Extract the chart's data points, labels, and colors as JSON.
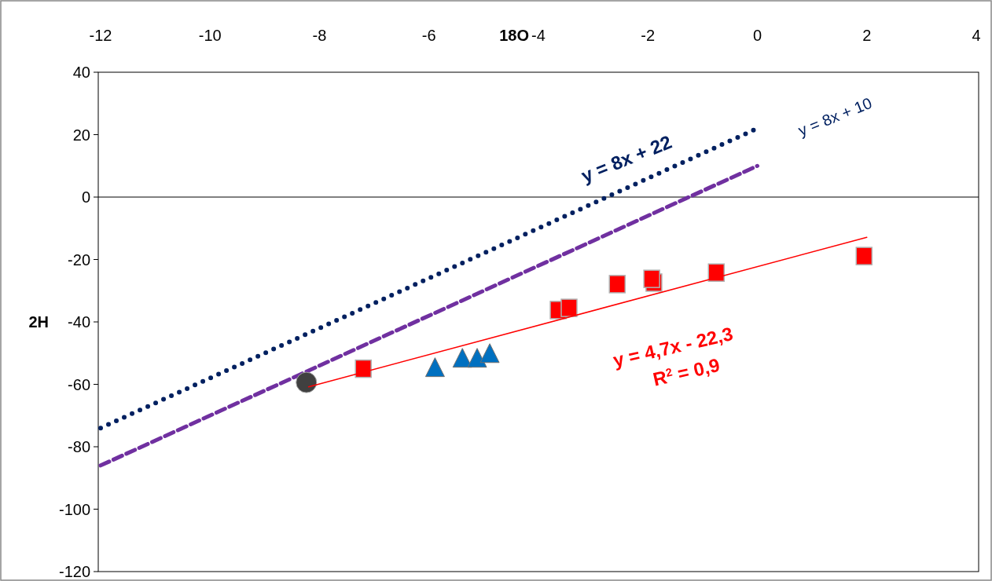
{
  "chart_data": {
    "type": "scatter",
    "xlabel": "18O",
    "ylabel": "2H",
    "xlim": [
      -12,
      4
    ],
    "ylim": [
      -120,
      40
    ],
    "xticks": [
      -12,
      -10,
      -8,
      -6,
      -4,
      -2,
      0,
      2,
      4
    ],
    "yticks": [
      40,
      20,
      0,
      -20,
      -40,
      -60,
      -80,
      -100,
      -120
    ],
    "grid": false,
    "ref_lines": [
      {
        "axis": "y",
        "value": 0,
        "color": "#000000"
      }
    ],
    "series": [
      {
        "type": "line",
        "color": "#002060",
        "line_style": "dotted",
        "marker": "none",
        "x": [
          -12,
          0
        ],
        "values": [
          -74,
          22
        ]
      },
      {
        "type": "line",
        "color": "#7030a0",
        "line_style": "dashed",
        "marker": "none",
        "x": [
          -12,
          0
        ],
        "values": [
          -86,
          10
        ]
      },
      {
        "type": "scatter",
        "color": "#404040",
        "marker": "circle",
        "x": [
          -8.24
        ],
        "values": [
          -59.4
        ]
      },
      {
        "type": "scatter",
        "color": "#0070c0",
        "marker": "triangle",
        "x": [
          -5.89,
          -5.39,
          -5.12,
          -4.89
        ],
        "values": [
          -55,
          -52,
          -52,
          -50.5
        ]
      },
      {
        "type": "scatter",
        "color": "#ff0000",
        "marker": "square",
        "x": [
          -7.2,
          -3.64,
          -3.44,
          -2.56,
          -1.89,
          -1.93,
          -0.75,
          1.95
        ],
        "values": [
          -55,
          -36.2,
          -35.5,
          -27.9,
          -27.4,
          -26.2,
          -24.2,
          -18.9
        ]
      },
      {
        "type": "line",
        "color": "#ff0000",
        "line_style": "solid",
        "marker": "none",
        "x": [
          -8.2,
          2
        ],
        "values": [
          -60.8,
          -12.9
        ]
      }
    ],
    "annotations": [
      "y = 8x + 22",
      "y = 8x + 10",
      "y = 4,7x - 22,3",
      "R$^{2}$ = 0,9"
    ]
  }
}
